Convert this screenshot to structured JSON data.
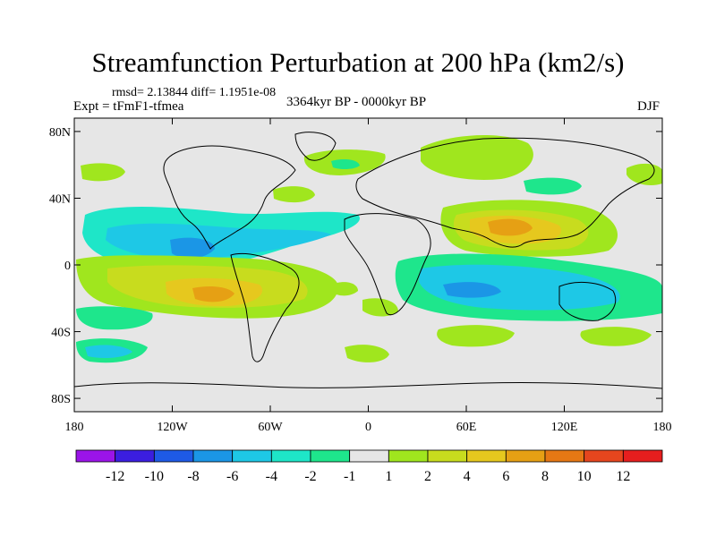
{
  "map": {
    "title": "Streamfunction Perturbation at 200 hPa (km2/s)",
    "rmsd_text": "rmsd= 2.13844  diff= 1.1951e-08",
    "experiment": "Expt = tFmF1-tfmea",
    "period": "3364kyr BP - 0000kyr BP",
    "season": "DJF",
    "lat_ticks": [
      {
        "lat": 80,
        "label": "80N"
      },
      {
        "lat": 40,
        "label": "40N"
      },
      {
        "lat": 0,
        "label": "0"
      },
      {
        "lat": -40,
        "label": "40S"
      },
      {
        "lat": -80,
        "label": "80S"
      }
    ],
    "lon_ticks": [
      {
        "lon": -180,
        "label": "180"
      },
      {
        "lon": -120,
        "label": "120W"
      },
      {
        "lon": -60,
        "label": "60W"
      },
      {
        "lon": 0,
        "label": "0"
      },
      {
        "lon": 60,
        "label": "60E"
      },
      {
        "lon": 120,
        "label": "120E"
      },
      {
        "lon": 180,
        "label": "180"
      }
    ],
    "colorbar": {
      "labels": [
        "-12",
        "-10",
        "-8",
        "-6",
        "-4",
        "-2",
        "-1",
        "1",
        "2",
        "4",
        "6",
        "8",
        "10",
        "12"
      ],
      "colors": [
        "#9b14e8",
        "#3b1ee0",
        "#1e5ae6",
        "#1b96e6",
        "#1ec8e6",
        "#1ee6c8",
        "#1ee68c",
        "#e6e6e6",
        "#a0e61e",
        "#c8dc1e",
        "#e6c81e",
        "#e6a014",
        "#e67814",
        "#e6461e",
        "#e61e1e"
      ]
    },
    "background_color": "#e6e6e6"
  }
}
